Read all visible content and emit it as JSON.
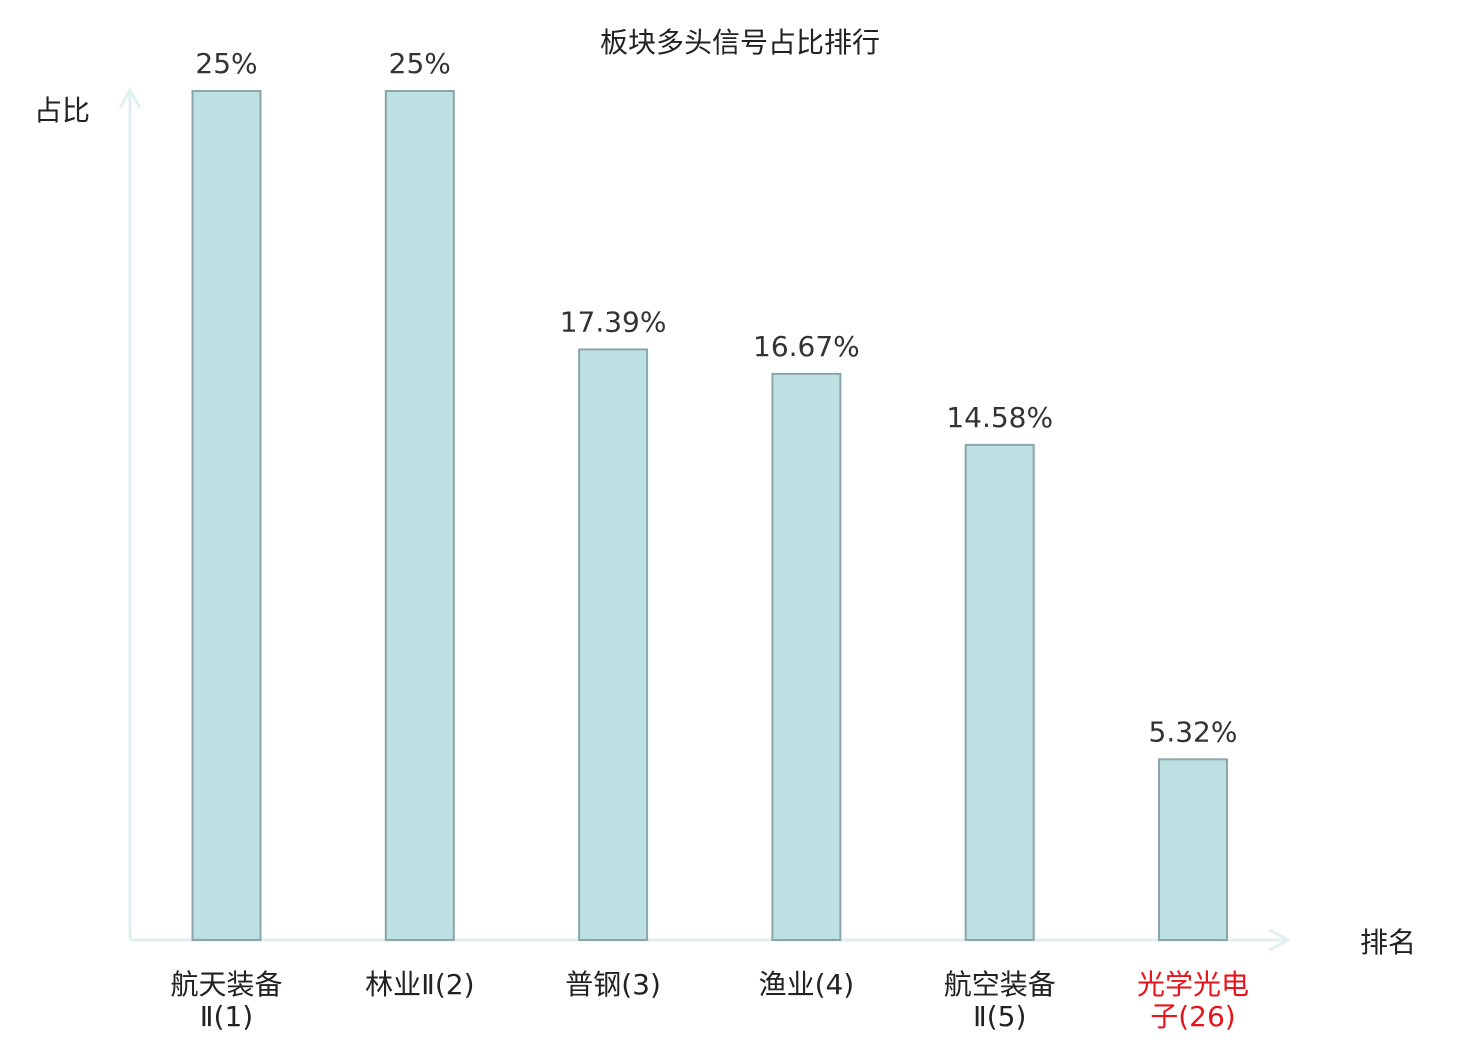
{
  "chart_data": {
    "type": "bar",
    "title": "板块多头信号占比排行",
    "xlabel": "排名",
    "ylabel": "占比",
    "ylim": [
      0,
      25
    ],
    "grid": false,
    "categories": [
      {
        "lines": [
          "航天装备",
          "Ⅱ(1)"
        ],
        "highlight": false
      },
      {
        "lines": [
          "林业Ⅱ(2)"
        ],
        "highlight": false
      },
      {
        "lines": [
          "普钢(3)"
        ],
        "highlight": false
      },
      {
        "lines": [
          "渔业(4)"
        ],
        "highlight": false
      },
      {
        "lines": [
          "航空装备",
          "Ⅱ(5)"
        ],
        "highlight": false
      },
      {
        "lines": [
          "光学光电",
          "子(26)"
        ],
        "highlight": true
      }
    ],
    "values": [
      25,
      25,
      17.39,
      16.67,
      14.58,
      5.32
    ],
    "value_labels": [
      "25%",
      "25%",
      "17.39%",
      "16.67%",
      "14.58%",
      "5.32%"
    ],
    "colors": {
      "bar_fill": "#bde0e2",
      "bar_stroke": "#8aa6a8",
      "axis": "#dff1ef",
      "highlight_text": "#e8131b"
    }
  }
}
